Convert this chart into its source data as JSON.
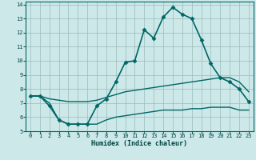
{
  "title": "",
  "xlabel": "Humidex (Indice chaleur)",
  "bg_color": "#cce8e8",
  "grid_color": "#99bbbb",
  "line_color": "#006666",
  "xlim": [
    -0.5,
    23.5
  ],
  "ylim": [
    5,
    14.2
  ],
  "xticks": [
    0,
    1,
    2,
    3,
    4,
    5,
    6,
    7,
    8,
    9,
    10,
    11,
    12,
    13,
    14,
    15,
    16,
    17,
    18,
    19,
    20,
    21,
    22,
    23
  ],
  "yticks": [
    5,
    6,
    7,
    8,
    9,
    10,
    11,
    12,
    13,
    14
  ],
  "series": [
    {
      "x": [
        0,
        1,
        2,
        3,
        4,
        5,
        6,
        7,
        8,
        9,
        10,
        11,
        12,
        13,
        14,
        15,
        16,
        17,
        18,
        19,
        20,
        21,
        22,
        23
      ],
      "y": [
        7.5,
        7.5,
        6.8,
        5.8,
        5.5,
        5.5,
        5.5,
        6.8,
        7.3,
        8.5,
        9.9,
        10.0,
        12.2,
        11.6,
        13.1,
        13.8,
        13.3,
        13.0,
        11.5,
        9.8,
        8.8,
        8.5,
        8.0,
        7.1
      ],
      "marker": "D",
      "markersize": 2.5,
      "linewidth": 1.2
    },
    {
      "x": [
        0,
        1,
        2,
        3,
        4,
        5,
        6,
        7,
        8,
        9,
        10,
        11,
        12,
        13,
        14,
        15,
        16,
        17,
        18,
        19,
        20,
        21,
        22,
        23
      ],
      "y": [
        7.5,
        7.5,
        7.3,
        7.2,
        7.1,
        7.1,
        7.1,
        7.2,
        7.4,
        7.6,
        7.8,
        7.9,
        8.0,
        8.1,
        8.2,
        8.3,
        8.4,
        8.5,
        8.6,
        8.7,
        8.8,
        8.8,
        8.5,
        7.8
      ],
      "marker": null,
      "markersize": 0,
      "linewidth": 1.0
    },
    {
      "x": [
        0,
        1,
        2,
        3,
        4,
        5,
        6,
        7,
        8,
        9,
        10,
        11,
        12,
        13,
        14,
        15,
        16,
        17,
        18,
        19,
        20,
        21,
        22,
        23
      ],
      "y": [
        7.5,
        7.5,
        7.0,
        5.8,
        5.5,
        5.5,
        5.5,
        5.5,
        5.8,
        6.0,
        6.1,
        6.2,
        6.3,
        6.4,
        6.5,
        6.5,
        6.5,
        6.6,
        6.6,
        6.7,
        6.7,
        6.7,
        6.5,
        6.5
      ],
      "marker": null,
      "markersize": 0,
      "linewidth": 1.0
    }
  ]
}
